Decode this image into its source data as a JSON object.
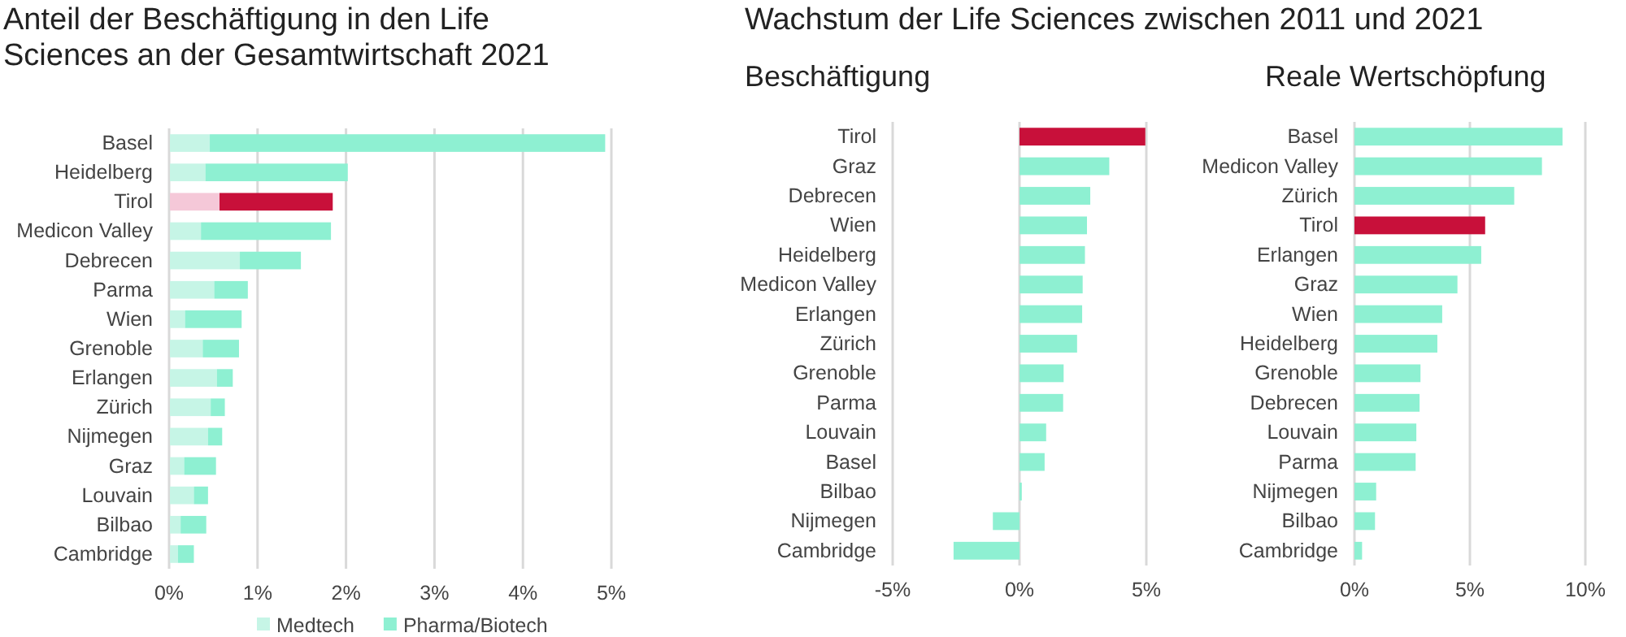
{
  "chart_data": [
    {
      "type": "bar",
      "orientation": "horizontal",
      "stacked": true,
      "title": "Anteil der Beschäftigung in den Life Sciences an der Gesamtwirtschaft 2021",
      "categories": [
        "Basel",
        "Heidelberg",
        "Tirol",
        "Medicon Valley",
        "Debrecen",
        "Parma",
        "Wien",
        "Grenoble",
        "Erlangen",
        "Zürich",
        "Nijmegen",
        "Graz",
        "Louvain",
        "Bilbao",
        "Cambridge"
      ],
      "series": [
        {
          "name": "Medtech",
          "color": "#c6f5e6",
          "colors": [
            "#c6f5e6",
            "#c6f5e6",
            "#f5c8d8",
            "#c6f5e6",
            "#c6f5e6",
            "#c6f5e6",
            "#c6f5e6",
            "#c6f5e6",
            "#c6f5e6",
            "#c6f5e6",
            "#c6f5e6",
            "#c6f5e6",
            "#c6f5e6",
            "#c6f5e6",
            "#c6f5e6"
          ],
          "values": [
            0.46,
            0.41,
            0.57,
            0.36,
            0.8,
            0.51,
            0.18,
            0.38,
            0.54,
            0.47,
            0.44,
            0.17,
            0.28,
            0.13,
            0.1
          ]
        },
        {
          "name": "Pharma/Biotech",
          "color": "#8ef0d2",
          "colors": [
            "#8ef0d2",
            "#8ef0d2",
            "#c8103a",
            "#8ef0d2",
            "#8ef0d2",
            "#8ef0d2",
            "#8ef0d2",
            "#8ef0d2",
            "#8ef0d2",
            "#8ef0d2",
            "#8ef0d2",
            "#8ef0d2",
            "#8ef0d2",
            "#8ef0d2",
            "#8ef0d2"
          ],
          "values": [
            4.47,
            1.61,
            1.28,
            1.47,
            0.69,
            0.38,
            0.64,
            0.41,
            0.18,
            0.16,
            0.16,
            0.36,
            0.16,
            0.29,
            0.18
          ]
        }
      ],
      "xlim": [
        0,
        5
      ],
      "xticks": [
        {
          "value": 0,
          "label": "0%"
        },
        {
          "value": 1,
          "label": "1%"
        },
        {
          "value": 2,
          "label": "2%"
        },
        {
          "value": 3,
          "label": "3%"
        },
        {
          "value": 4,
          "label": "4%"
        },
        {
          "value": 5,
          "label": "5%"
        }
      ],
      "grid": "x",
      "legend": "bottom"
    },
    {
      "type": "bar",
      "orientation": "horizontal",
      "title": "Wachstum der Life Sciences zwischen 2011 und 2021",
      "subtitle": "Beschäftigung",
      "categories": [
        "Tirol",
        "Graz",
        "Debrecen",
        "Wien",
        "Heidelberg",
        "Medicon Valley",
        "Erlangen",
        "Zürich",
        "Grenoble",
        "Parma",
        "Louvain",
        "Basel",
        "Bilbao",
        "Nijmegen",
        "Cambridge"
      ],
      "values": [
        4.96,
        3.54,
        2.79,
        2.66,
        2.58,
        2.49,
        2.47,
        2.27,
        1.74,
        1.72,
        1.05,
        0.99,
        0.09,
        -1.05,
        -2.6
      ],
      "colors": [
        "#c8103a",
        "#8ef0d2",
        "#8ef0d2",
        "#8ef0d2",
        "#8ef0d2",
        "#8ef0d2",
        "#8ef0d2",
        "#8ef0d2",
        "#8ef0d2",
        "#8ef0d2",
        "#8ef0d2",
        "#8ef0d2",
        "#8ef0d2",
        "#8ef0d2",
        "#8ef0d2"
      ],
      "xlim": [
        -5,
        5
      ],
      "xticks": [
        {
          "value": -5,
          "label": "-5%"
        },
        {
          "value": 0,
          "label": "0%"
        },
        {
          "value": 5,
          "label": "5%"
        }
      ],
      "grid": "x"
    },
    {
      "type": "bar",
      "orientation": "horizontal",
      "subtitle": "Reale Wertschöpfung",
      "categories": [
        "Basel",
        "Medicon Valley",
        "Zürich",
        "Tirol",
        "Erlangen",
        "Graz",
        "Wien",
        "Heidelberg",
        "Grenoble",
        "Debrecen",
        "Louvain",
        "Parma",
        "Nijmegen",
        "Bilbao",
        "Cambridge"
      ],
      "values": [
        9.01,
        8.12,
        6.92,
        5.66,
        5.49,
        4.46,
        3.8,
        3.59,
        2.86,
        2.82,
        2.68,
        2.65,
        0.94,
        0.89,
        0.33
      ],
      "colors": [
        "#8ef0d2",
        "#8ef0d2",
        "#8ef0d2",
        "#c8103a",
        "#8ef0d2",
        "#8ef0d2",
        "#8ef0d2",
        "#8ef0d2",
        "#8ef0d2",
        "#8ef0d2",
        "#8ef0d2",
        "#8ef0d2",
        "#8ef0d2",
        "#8ef0d2",
        "#8ef0d2"
      ],
      "xlim": [
        0,
        10
      ],
      "xticks": [
        {
          "value": 0,
          "label": "0%"
        },
        {
          "value": 5,
          "label": "5%"
        },
        {
          "value": 10,
          "label": "10%"
        }
      ],
      "grid": "x"
    }
  ]
}
